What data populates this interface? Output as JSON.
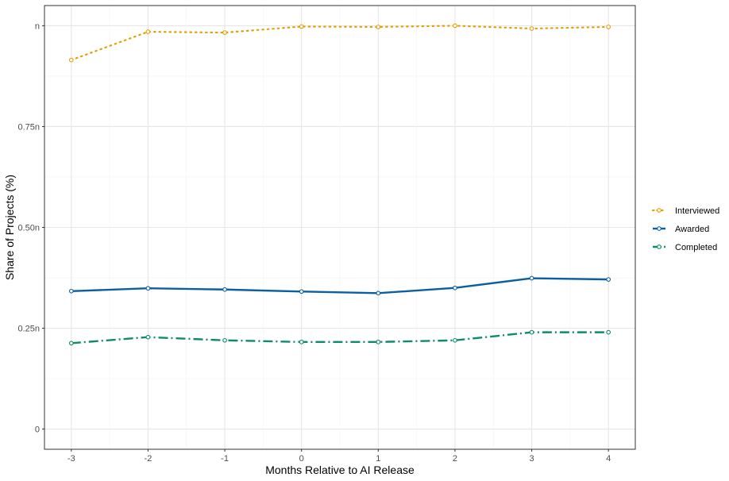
{
  "chart_data": {
    "type": "line",
    "title": "",
    "xlabel": "Months Relative to AI Release",
    "ylabel": "Share of Projects (%)",
    "x": [
      -3,
      -2,
      -1,
      0,
      1,
      2,
      3,
      4
    ],
    "x_tick_labels": [
      "-3",
      "-2",
      "-1",
      "0",
      "1",
      "2",
      "3",
      "4"
    ],
    "y_ticks": [
      0,
      0.25,
      0.5,
      0.75,
      1
    ],
    "y_tick_labels": [
      "0",
      "0.25n",
      "0.50n",
      "0.75n",
      "n"
    ],
    "xlim": [
      -3.35,
      4.35
    ],
    "ylim": [
      -0.05,
      1.05
    ],
    "grid": true,
    "legend_position": "right",
    "series": [
      {
        "name": "Interviewed",
        "color": "#E69F00",
        "line_style": "dotted",
        "values": [
          0.915,
          0.985,
          0.983,
          0.998,
          0.997,
          1.0,
          0.993,
          0.997
        ]
      },
      {
        "name": "Awarded",
        "color": "#0A5FA3",
        "line_style": "solid",
        "values": [
          0.342,
          0.349,
          0.346,
          0.341,
          0.337,
          0.35,
          0.374,
          0.371
        ]
      },
      {
        "name": "Completed",
        "color": "#0E8A6C",
        "line_style": "dashdot",
        "values": [
          0.213,
          0.228,
          0.22,
          0.216,
          0.216,
          0.22,
          0.24,
          0.24
        ]
      }
    ]
  }
}
